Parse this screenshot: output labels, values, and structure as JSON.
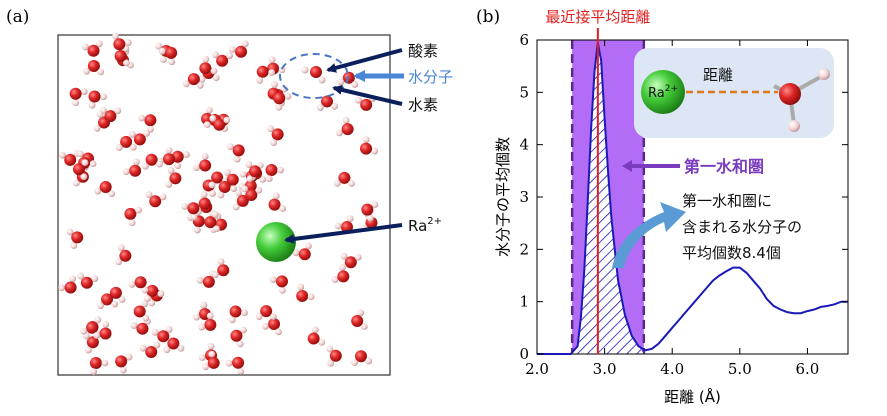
{
  "panel_a": {
    "label": "(a)",
    "callouts": {
      "oxygen": "酸素",
      "water": "水分子",
      "hydrogen": "水素",
      "radium": "Ra",
      "radium_sup": "2+"
    },
    "colors": {
      "oxygen": "#d42020",
      "hydrogen": "#f0c8c8",
      "radium": "#3cc43c",
      "arrow_dark": "#0b1f5c",
      "arrow_blue": "#4a86d8"
    }
  },
  "panel_b": {
    "label": "(b)",
    "nearest_label": "最近接平均距離",
    "shell_label": "第一水和圏",
    "annotation_lines": [
      "第一水和圏に",
      "含まれる水分子の",
      "平均個数8.4個"
    ],
    "inset": {
      "ion": "Ra",
      "ion_sup": "2+",
      "distance": "距離"
    },
    "colors": {
      "curve": "#1a1ab8",
      "shell": "#a855f7",
      "nearest": "#e02020",
      "inset_bg": "#dce6f5",
      "arrow": "#5b9bd5"
    }
  },
  "chart_data": {
    "type": "line",
    "xlabel": "距離 (Å)",
    "ylabel": "水分子の平均個数",
    "xlim": [
      2.0,
      6.6
    ],
    "ylim": [
      0,
      6
    ],
    "xticks": [
      "2.0",
      "3.0",
      "4.0",
      "5.0",
      "6.0"
    ],
    "yticks": [
      "0",
      "1",
      "2",
      "3",
      "4",
      "5",
      "6"
    ],
    "nearest_distance": 2.9,
    "first_shell_range": [
      2.52,
      3.58
    ],
    "x": [
      2.0,
      2.5,
      2.6,
      2.65,
      2.7,
      2.75,
      2.8,
      2.85,
      2.9,
      2.95,
      3.0,
      3.05,
      3.1,
      3.2,
      3.3,
      3.4,
      3.5,
      3.6,
      3.7,
      3.8,
      3.9,
      4.0,
      4.1,
      4.2,
      4.3,
      4.4,
      4.5,
      4.6,
      4.7,
      4.8,
      4.9,
      5.0,
      5.1,
      5.2,
      5.3,
      5.4,
      5.5,
      5.6,
      5.7,
      5.8,
      5.9,
      6.0,
      6.1,
      6.2,
      6.3,
      6.4,
      6.5,
      6.6
    ],
    "y": [
      0.0,
      0.0,
      0.15,
      0.7,
      1.6,
      2.9,
      4.3,
      5.4,
      5.95,
      5.6,
      4.5,
      3.5,
      2.6,
      1.4,
      0.75,
      0.35,
      0.15,
      0.07,
      0.1,
      0.2,
      0.35,
      0.5,
      0.65,
      0.8,
      0.95,
      1.1,
      1.25,
      1.4,
      1.5,
      1.58,
      1.65,
      1.65,
      1.55,
      1.4,
      1.25,
      1.05,
      0.92,
      0.85,
      0.8,
      0.78,
      0.78,
      0.82,
      0.85,
      0.9,
      0.92,
      0.95,
      1.0,
      1.0
    ]
  }
}
